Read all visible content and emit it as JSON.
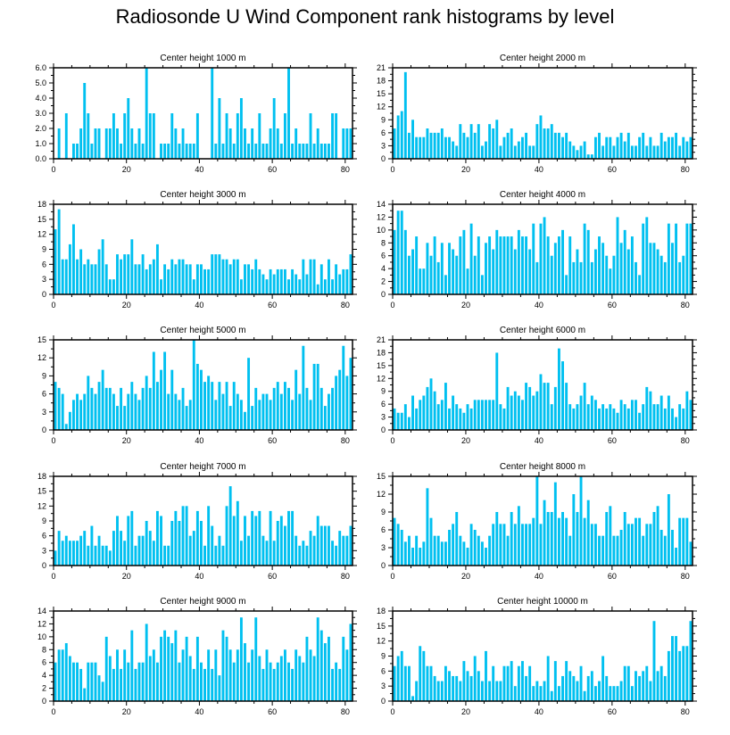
{
  "title": "Radiosonde U Wind Component rank histograms by level",
  "colors": {
    "bar": "#00c0f0",
    "axis": "#000000"
  },
  "chart_data": [
    {
      "type": "bar",
      "title": "Center height 1000 m",
      "ylim": [
        0,
        6
      ],
      "yticks": [
        0,
        1,
        2,
        3,
        4,
        5,
        6
      ],
      "ytick_labels": [
        "0.0",
        "1.0",
        "2.0",
        "3.0",
        "4.0",
        "5.0",
        "6.0"
      ],
      "xlim": [
        0,
        82
      ],
      "xticks": [
        0,
        20,
        40,
        60,
        80
      ],
      "values": [
        0,
        2,
        0,
        3,
        0,
        1,
        1,
        2,
        5,
        3,
        1,
        2,
        2,
        0,
        2,
        2,
        3,
        2,
        1,
        3,
        4,
        2,
        1,
        2,
        1,
        6,
        3,
        3,
        0,
        1,
        1,
        1,
        3,
        2,
        1,
        2,
        1,
        1,
        1,
        3,
        0,
        0,
        0,
        6,
        1,
        4,
        1,
        3,
        2,
        1,
        3,
        4,
        2,
        1,
        2,
        1,
        3,
        1,
        1,
        2,
        4,
        2,
        1,
        3,
        6,
        1,
        2,
        1,
        1,
        1,
        3,
        1,
        2,
        1,
        1,
        1,
        3,
        3,
        0,
        2,
        2,
        2
      ]
    },
    {
      "type": "bar",
      "title": "Center height 2000 m",
      "ylim": [
        0,
        21
      ],
      "yticks": [
        0,
        3,
        6,
        9,
        12,
        15,
        18,
        21
      ],
      "ytick_labels": [
        "0",
        "3",
        "6",
        "9",
        "12",
        "15",
        "18",
        "21"
      ],
      "xlim": [
        0,
        82
      ],
      "xticks": [
        0,
        20,
        40,
        60,
        80
      ],
      "values": [
        7,
        10,
        11,
        20,
        6,
        9,
        5,
        5,
        5,
        7,
        6,
        6,
        6,
        7,
        5,
        5,
        4,
        3,
        8,
        6,
        5,
        8,
        6,
        8,
        3,
        4,
        8,
        7,
        9,
        3,
        5,
        6,
        7,
        3,
        4,
        5,
        6,
        3,
        3,
        8,
        10,
        7,
        7,
        8,
        6,
        6,
        5,
        6,
        4,
        3,
        2,
        3,
        4,
        1,
        1,
        5,
        6,
        3,
        5,
        5,
        3,
        5,
        6,
        4,
        6,
        3,
        3,
        5,
        6,
        3,
        5,
        3,
        3,
        6,
        4,
        5,
        5,
        6,
        3,
        5,
        4,
        5
      ]
    },
    {
      "type": "bar",
      "title": "Center height 3000 m",
      "ylim": [
        0,
        18
      ],
      "yticks": [
        0,
        3,
        6,
        9,
        12,
        15,
        18
      ],
      "ytick_labels": [
        "0",
        "3",
        "6",
        "9",
        "12",
        "15",
        "18"
      ],
      "xlim": [
        0,
        82
      ],
      "xticks": [
        0,
        20,
        40,
        60,
        80
      ],
      "values": [
        13,
        17,
        7,
        7,
        10,
        14,
        7,
        9,
        6,
        7,
        6,
        6,
        9,
        11,
        6,
        3,
        3,
        8,
        7,
        8,
        8,
        11,
        6,
        6,
        8,
        5,
        6,
        7,
        10,
        3,
        6,
        5,
        7,
        6,
        7,
        7,
        6,
        6,
        3,
        6,
        6,
        5,
        5,
        8,
        8,
        8,
        7,
        7,
        6,
        7,
        7,
        3,
        6,
        6,
        5,
        7,
        5,
        4,
        3,
        5,
        4,
        5,
        5,
        5,
        3,
        5,
        4,
        3,
        7,
        4,
        7,
        7,
        2,
        6,
        3,
        7,
        3,
        6,
        4,
        5,
        5,
        8
      ]
    },
    {
      "type": "bar",
      "title": "Center height 4000 m",
      "ylim": [
        0,
        14
      ],
      "yticks": [
        0,
        2,
        4,
        6,
        8,
        10,
        12,
        14
      ],
      "ytick_labels": [
        "0",
        "2",
        "4",
        "6",
        "8",
        "10",
        "12",
        "14"
      ],
      "xlim": [
        0,
        82
      ],
      "xticks": [
        0,
        20,
        40,
        60,
        80
      ],
      "values": [
        10,
        13,
        13,
        10,
        6,
        7,
        9,
        4,
        4,
        8,
        6,
        9,
        5,
        8,
        3,
        8,
        7,
        6,
        9,
        10,
        4,
        11,
        6,
        9,
        3,
        8,
        9,
        7,
        10,
        9,
        9,
        9,
        9,
        7,
        10,
        9,
        9,
        7,
        11,
        5,
        11,
        12,
        9,
        6,
        8,
        9,
        10,
        3,
        9,
        5,
        7,
        5,
        11,
        10,
        5,
        7,
        9,
        8,
        6,
        4,
        6,
        12,
        8,
        10,
        7,
        9,
        5,
        3,
        11,
        12,
        8,
        8,
        7,
        6,
        5,
        11,
        8,
        11,
        5,
        6,
        11,
        11
      ]
    },
    {
      "type": "bar",
      "title": "Center height 5000 m",
      "ylim": [
        0,
        15
      ],
      "yticks": [
        0,
        3,
        6,
        9,
        12,
        15
      ],
      "ytick_labels": [
        "0",
        "3",
        "6",
        "9",
        "12",
        "15"
      ],
      "xlim": [
        0,
        82
      ],
      "xticks": [
        0,
        20,
        40,
        60,
        80
      ],
      "values": [
        8,
        7,
        6,
        1,
        3,
        5,
        6,
        5,
        6,
        9,
        7,
        6,
        8,
        10,
        7,
        7,
        6,
        4,
        7,
        4,
        6,
        8,
        6,
        5,
        7,
        9,
        7,
        13,
        8,
        10,
        13,
        6,
        10,
        6,
        5,
        7,
        4,
        5,
        15,
        11,
        10,
        8,
        9,
        8,
        5,
        8,
        6,
        8,
        4,
        8,
        6,
        5,
        3,
        12,
        4,
        7,
        5,
        6,
        6,
        5,
        7,
        8,
        6,
        8,
        7,
        5,
        10,
        6,
        14,
        7,
        5,
        11,
        11,
        7,
        4,
        6,
        7,
        9,
        10,
        14,
        9,
        12
      ]
    },
    {
      "type": "bar",
      "title": "Center height 6000 m",
      "ylim": [
        0,
        21
      ],
      "yticks": [
        0,
        3,
        6,
        9,
        12,
        15,
        18,
        21
      ],
      "ytick_labels": [
        "0",
        "3",
        "6",
        "9",
        "12",
        "15",
        "18",
        "21"
      ],
      "xlim": [
        0,
        82
      ],
      "xticks": [
        0,
        20,
        40,
        60,
        80
      ],
      "values": [
        5,
        4,
        4,
        6,
        3,
        8,
        5,
        7,
        8,
        10,
        12,
        9,
        6,
        7,
        11,
        5,
        8,
        6,
        5,
        4,
        6,
        5,
        7,
        7,
        7,
        7,
        7,
        7,
        18,
        6,
        5,
        10,
        8,
        9,
        8,
        7,
        11,
        10,
        8,
        9,
        13,
        11,
        11,
        6,
        10,
        19,
        16,
        11,
        6,
        5,
        6,
        8,
        11,
        6,
        8,
        7,
        5,
        6,
        5,
        6,
        5,
        4,
        7,
        6,
        5,
        7,
        7,
        4,
        6,
        10,
        9,
        6,
        6,
        8,
        5,
        8,
        5,
        3,
        6,
        5,
        9,
        7
      ]
    },
    {
      "type": "bar",
      "title": "Center height 7000 m",
      "ylim": [
        0,
        18
      ],
      "yticks": [
        0,
        3,
        6,
        9,
        12,
        15,
        18
      ],
      "ytick_labels": [
        "0",
        "3",
        "6",
        "9",
        "12",
        "15",
        "18"
      ],
      "xlim": [
        0,
        82
      ],
      "xticks": [
        0,
        20,
        40,
        60,
        80
      ],
      "values": [
        3,
        7,
        5,
        6,
        5,
        5,
        5,
        6,
        7,
        4,
        8,
        4,
        6,
        4,
        4,
        3,
        7,
        10,
        7,
        5,
        10,
        11,
        4,
        6,
        6,
        9,
        7,
        5,
        11,
        10,
        4,
        4,
        9,
        11,
        9,
        12,
        12,
        6,
        7,
        11,
        9,
        4,
        12,
        8,
        4,
        6,
        4,
        12,
        16,
        10,
        13,
        5,
        10,
        6,
        11,
        10,
        11,
        6,
        5,
        11,
        5,
        9,
        10,
        8,
        11,
        11,
        6,
        4,
        5,
        4,
        7,
        6,
        10,
        8,
        8,
        8,
        5,
        4,
        7,
        6,
        6,
        8
      ]
    },
    {
      "type": "bar",
      "title": "Center height 8000 m",
      "ylim": [
        0,
        15
      ],
      "yticks": [
        0,
        3,
        6,
        9,
        12,
        15
      ],
      "ytick_labels": [
        "0",
        "3",
        "6",
        "9",
        "12",
        "15"
      ],
      "xlim": [
        0,
        82
      ],
      "xticks": [
        0,
        20,
        40,
        60,
        80
      ],
      "values": [
        8,
        7,
        6,
        4,
        5,
        3,
        5,
        3,
        4,
        13,
        8,
        5,
        5,
        4,
        4,
        6,
        7,
        9,
        5,
        4,
        3,
        7,
        6,
        5,
        4,
        3,
        5,
        7,
        9,
        7,
        7,
        5,
        9,
        7,
        10,
        7,
        7,
        7,
        8,
        15,
        7,
        11,
        9,
        9,
        14,
        8,
        9,
        8,
        5,
        12,
        9,
        15,
        8,
        11,
        7,
        7,
        5,
        5,
        9,
        10,
        5,
        5,
        6,
        9,
        7,
        7,
        8,
        8,
        5,
        7,
        7,
        9,
        10,
        6,
        5,
        12,
        6,
        3,
        8,
        8,
        8,
        4
      ]
    },
    {
      "type": "bar",
      "title": "Center height 9000 m",
      "ylim": [
        0,
        14
      ],
      "yticks": [
        0,
        2,
        4,
        6,
        8,
        10,
        12,
        14
      ],
      "ytick_labels": [
        "0",
        "2",
        "4",
        "6",
        "8",
        "10",
        "12",
        "14"
      ],
      "xlim": [
        0,
        82
      ],
      "xticks": [
        0,
        20,
        40,
        60,
        80
      ],
      "values": [
        6,
        8,
        8,
        9,
        7,
        6,
        6,
        5,
        2,
        6,
        6,
        6,
        4,
        3,
        10,
        7,
        5,
        8,
        5,
        8,
        6,
        11,
        5,
        6,
        6,
        12,
        7,
        8,
        6,
        10,
        11,
        10,
        9,
        11,
        6,
        8,
        10,
        7,
        5,
        10,
        6,
        5,
        8,
        5,
        8,
        4,
        11,
        10,
        8,
        6,
        8,
        13,
        9,
        6,
        8,
        13,
        7,
        5,
        8,
        6,
        5,
        6,
        7,
        8,
        6,
        5,
        8,
        7,
        6,
        10,
        8,
        7,
        13,
        11,
        9,
        10,
        5,
        6,
        5,
        10,
        8,
        12
      ]
    },
    {
      "type": "bar",
      "title": "Center height 10000 m",
      "ylim": [
        0,
        18
      ],
      "yticks": [
        0,
        3,
        6,
        9,
        12,
        15,
        18
      ],
      "ytick_labels": [
        "0",
        "3",
        "6",
        "9",
        "12",
        "15",
        "18"
      ],
      "xlim": [
        0,
        82
      ],
      "xticks": [
        0,
        20,
        40,
        60,
        80
      ],
      "values": [
        7,
        9,
        10,
        7,
        7,
        1,
        4,
        11,
        10,
        7,
        7,
        5,
        4,
        4,
        7,
        6,
        5,
        5,
        4,
        8,
        6,
        5,
        9,
        6,
        4,
        10,
        4,
        7,
        4,
        4,
        7,
        7,
        8,
        3,
        7,
        8,
        5,
        7,
        3,
        4,
        3,
        4,
        9,
        2,
        8,
        3,
        5,
        8,
        6,
        5,
        4,
        7,
        2,
        5,
        6,
        3,
        4,
        9,
        5,
        3,
        3,
        3,
        4,
        7,
        7,
        3,
        6,
        5,
        6,
        7,
        4,
        16,
        6,
        7,
        5,
        10,
        13,
        13,
        10,
        11,
        11,
        16
      ]
    }
  ]
}
